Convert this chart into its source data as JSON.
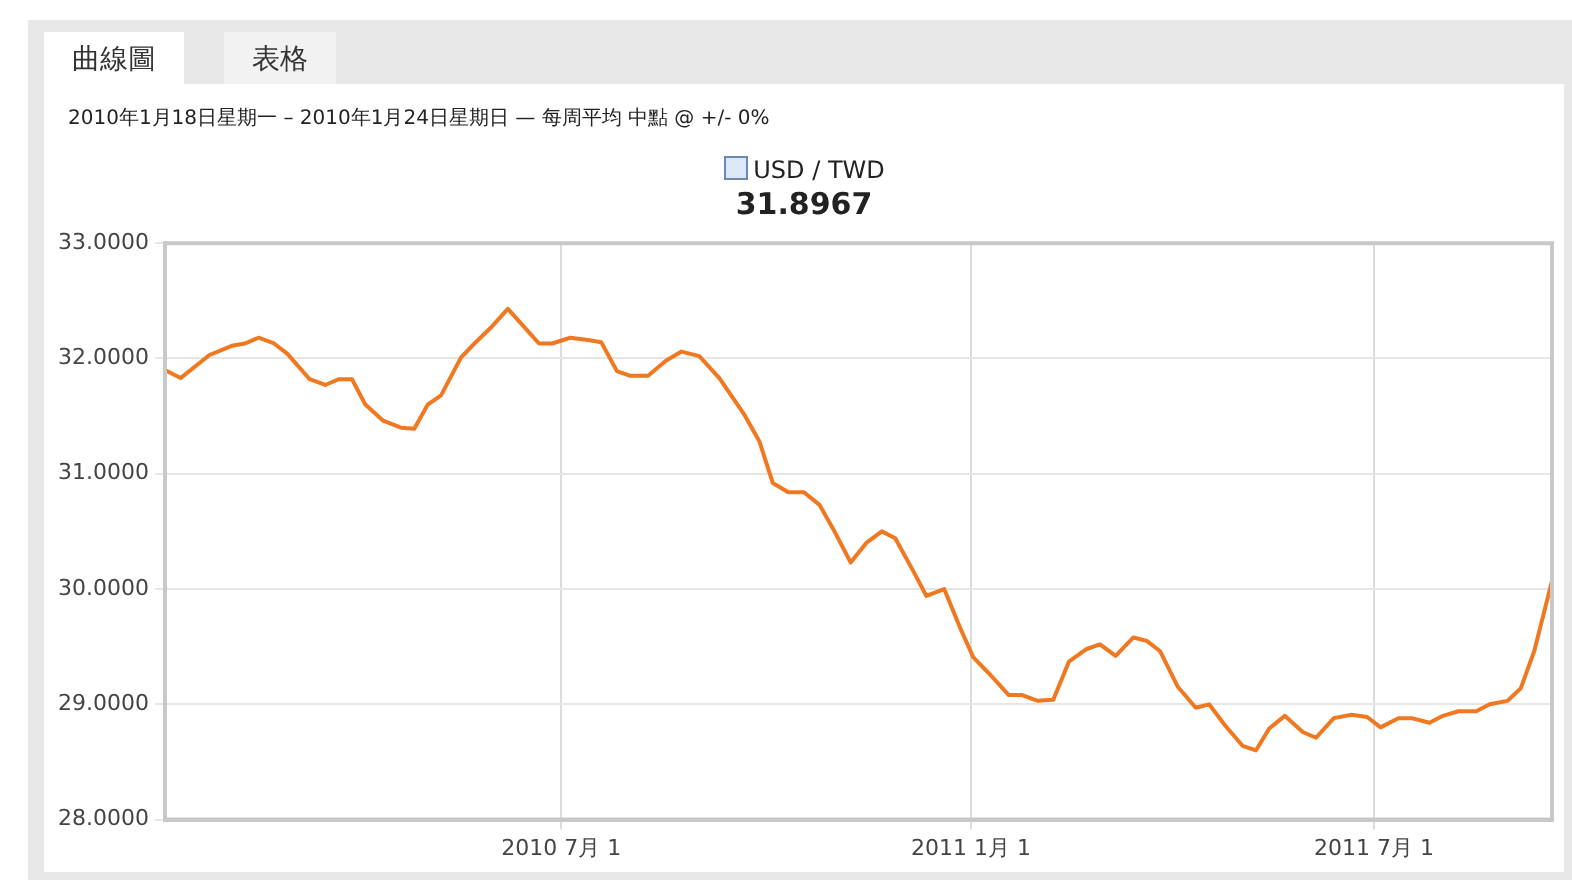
{
  "chart_data": {
    "type": "line",
    "subtitle": "2010年1月18日星期一 – 2010年1月24日星期日 — 每周平均 中點 @ +/- 0%",
    "annotations": [
      "曲線圖",
      "表格",
      "31.8967"
    ],
    "x": [
      "2010-01-04",
      "2010-01-11",
      "2010-01-24",
      "2010-02-03",
      "2010-02-09",
      "2010-02-15",
      "2010-02-22",
      "2010-02-28",
      "2010-03-10",
      "2010-03-17",
      "2010-03-23",
      "2010-03-29",
      "2010-04-04",
      "2010-04-12",
      "2010-04-20",
      "2010-04-26",
      "2010-05-02",
      "2010-05-08",
      "2010-05-17",
      "2010-05-23",
      "2010-05-31",
      "2010-06-07",
      "2010-06-14",
      "2010-06-21",
      "2010-06-27",
      "2010-07-05",
      "2010-07-13",
      "2010-07-19",
      "2010-07-26",
      "2010-08-01",
      "2010-08-09",
      "2010-08-17",
      "2010-08-24",
      "2010-09-01",
      "2010-09-10",
      "2010-09-21",
      "2010-09-28",
      "2010-10-04",
      "2010-10-11",
      "2010-10-18",
      "2010-10-25",
      "2010-11-01",
      "2010-11-08",
      "2010-11-15",
      "2010-11-22",
      "2010-11-28",
      "2010-12-06",
      "2010-12-12",
      "2010-12-20",
      "2010-12-27",
      "2011-01-02",
      "2011-01-10",
      "2011-01-18",
      "2011-01-24",
      "2011-01-31",
      "2011-02-07",
      "2011-02-14",
      "2011-02-22",
      "2011-02-28",
      "2011-03-07",
      "2011-03-15",
      "2011-03-21",
      "2011-03-27",
      "2011-04-04",
      "2011-04-12",
      "2011-04-18",
      "2011-04-25",
      "2011-05-03",
      "2011-05-09",
      "2011-05-15",
      "2011-05-22",
      "2011-05-30",
      "2011-06-05",
      "2011-06-13",
      "2011-06-21",
      "2011-06-28",
      "2011-07-04",
      "2011-07-12",
      "2011-07-18",
      "2011-07-26",
      "2011-08-01",
      "2011-08-08",
      "2011-08-16",
      "2011-08-22",
      "2011-08-30",
      "2011-09-05",
      "2011-09-11",
      "2011-09-19"
    ],
    "series": [
      {
        "name": "USD / TWD",
        "color": "#f07820",
        "values": [
          31.9,
          31.83,
          32.03,
          32.11,
          32.13,
          32.18,
          32.13,
          32.04,
          31.82,
          31.77,
          31.82,
          31.82,
          31.6,
          31.46,
          31.4,
          31.39,
          31.6,
          31.68,
          32.01,
          32.13,
          32.28,
          32.43,
          32.28,
          32.13,
          32.13,
          32.18,
          32.16,
          32.14,
          31.89,
          31.85,
          31.85,
          31.98,
          32.06,
          32.02,
          31.83,
          31.52,
          31.28,
          30.92,
          30.84,
          30.84,
          30.73,
          30.49,
          30.23,
          30.4,
          30.5,
          30.44,
          30.16,
          29.94,
          30.0,
          29.67,
          29.41,
          29.25,
          29.08,
          29.08,
          29.03,
          29.04,
          29.37,
          29.48,
          29.52,
          29.42,
          29.58,
          29.55,
          29.46,
          29.15,
          28.97,
          29.0,
          28.82,
          28.64,
          28.6,
          28.79,
          28.9,
          28.76,
          28.71,
          28.88,
          28.91,
          28.89,
          28.8,
          28.88,
          28.88,
          28.84,
          28.9,
          28.94,
          28.94,
          29.0,
          29.03,
          29.14,
          29.46,
          30.07
        ]
      }
    ],
    "xlim": [
      "2010-01-04",
      "2011-09-19"
    ],
    "xticks": [
      {
        "value": "2010-07-01",
        "label": "2010 7月 1"
      },
      {
        "value": "2011-01-01",
        "label": "2011 1月 1"
      },
      {
        "value": "2011-07-01",
        "label": "2011 7月 1"
      }
    ],
    "ylim": [
      28,
      33
    ],
    "yticks": [
      {
        "value": 28,
        "label": "28.0000"
      },
      {
        "value": 29,
        "label": "29.0000"
      },
      {
        "value": 30,
        "label": "30.0000"
      },
      {
        "value": 31,
        "label": "31.0000"
      },
      {
        "value": 32,
        "label": "32.0000"
      },
      {
        "value": 33,
        "label": "33.0000"
      }
    ],
    "grid": true,
    "legend": "top",
    "marker": "none",
    "line_style": "solid"
  }
}
